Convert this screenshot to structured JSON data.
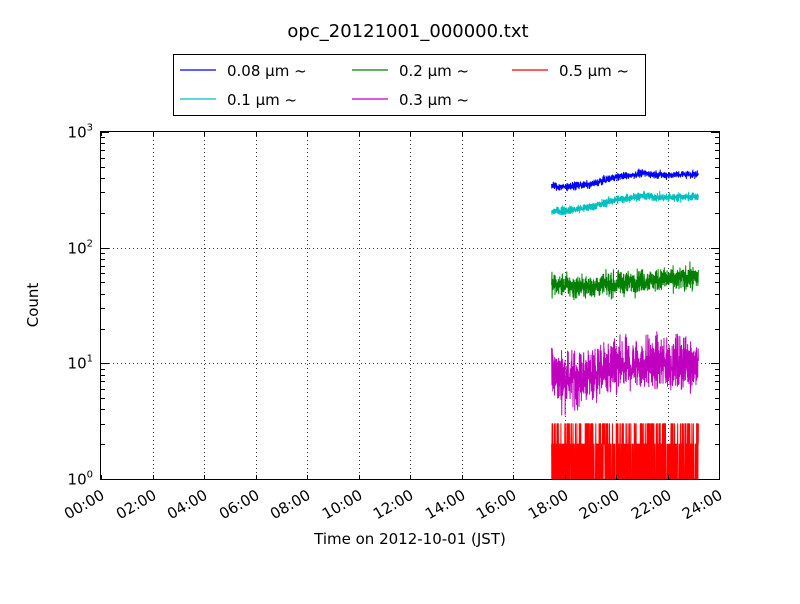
{
  "chart_data": {
    "type": "line",
    "title": "opc_20121001_000000.txt",
    "xlabel": "Time on 2012-10-01 (JST)",
    "ylabel": "Count",
    "yscale": "log",
    "ylim": [
      1,
      1000
    ],
    "xlim_hours": [
      0,
      24
    ],
    "grid": true,
    "legend_position": "top-center",
    "x_tick_labels": [
      "00:00",
      "02:00",
      "04:00",
      "06:00",
      "08:00",
      "10:00",
      "12:00",
      "14:00",
      "16:00",
      "18:00",
      "20:00",
      "22:00",
      "24:00"
    ],
    "y_tick_labels": [
      {
        "base": "10",
        "exp": "0"
      },
      {
        "base": "10",
        "exp": "1"
      },
      {
        "base": "10",
        "exp": "2"
      },
      {
        "base": "10",
        "exp": "3"
      }
    ],
    "series": [
      {
        "name": "0.08 μm ~",
        "color": "#0000ff",
        "x_hours": [
          17.5,
          18.0,
          18.5,
          19.0,
          19.5,
          20.0,
          20.5,
          21.0,
          21.5,
          22.0,
          22.5,
          23.2
        ],
        "values": [
          340,
          335,
          345,
          350,
          380,
          410,
          420,
          440,
          430,
          425,
          430,
          430
        ],
        "noise": 0.035,
        "spikes": 0
      },
      {
        "name": "0.1 μm ~",
        "color": "#00bfbf",
        "x_hours": [
          17.5,
          18.0,
          18.5,
          19.0,
          19.5,
          20.0,
          20.5,
          21.0,
          21.5,
          22.0,
          22.5,
          23.2
        ],
        "values": [
          205,
          210,
          215,
          225,
          240,
          260,
          270,
          280,
          275,
          270,
          275,
          275
        ],
        "noise": 0.04,
        "spikes": 0
      },
      {
        "name": "0.2 μm ~",
        "color": "#008000",
        "x_hours": [
          17.5,
          18.0,
          18.5,
          19.0,
          19.5,
          20.0,
          20.5,
          21.0,
          21.5,
          22.0,
          22.5,
          23.2
        ],
        "values": [
          48,
          47,
          46,
          46,
          47,
          48,
          50,
          52,
          52,
          53,
          54,
          55
        ],
        "noise": 0.11,
        "spikes": 0
      },
      {
        "name": "0.3 μm ~",
        "color": "#bf00bf",
        "x_hours": [
          17.5,
          18.0,
          18.5,
          19.0,
          19.5,
          20.0,
          20.5,
          21.0,
          21.5,
          22.0,
          22.5,
          23.2
        ],
        "values": [
          8,
          7.5,
          7.5,
          8,
          8.5,
          9,
          9.5,
          10,
          10,
          10,
          10,
          10
        ],
        "noise": 0.26,
        "spikes": 0
      },
      {
        "name": "0.5 μm ~",
        "color": "#ff0000",
        "x_hours": [
          17.5,
          23.2
        ],
        "values": [
          1,
          1
        ],
        "noise": 0,
        "spikes": 1,
        "spike_levels": [
          2,
          3
        ]
      }
    ]
  }
}
